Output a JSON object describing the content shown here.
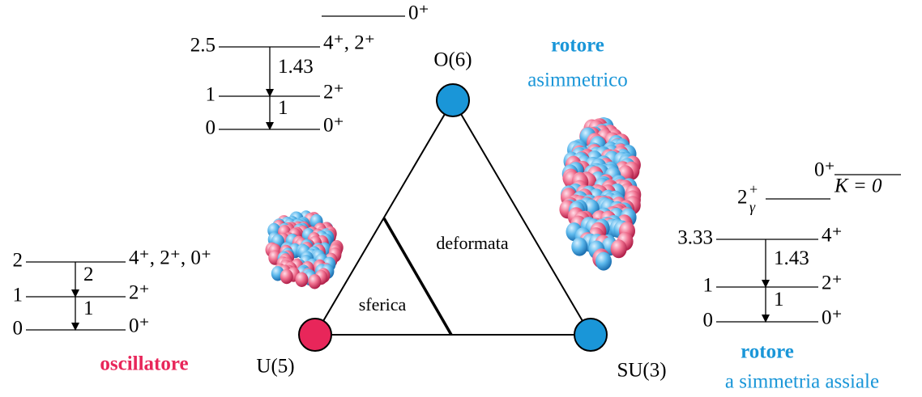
{
  "vertices": [
    {
      "label": "O(6)",
      "title": "rotore",
      "subtitle": "asimmetrico"
    },
    {
      "label": "U(5)",
      "title": "oscillatore"
    },
    {
      "label": "SU(3)",
      "title": "rotore",
      "subtitle": "a simmetria assiale"
    }
  ],
  "regions": [
    "deformata",
    "sferica"
  ],
  "schemes": [
    {
      "levels": [
        {
          "energy": 0,
          "spin": "0⁺"
        },
        {
          "energy": 1,
          "spin": "2⁺"
        },
        {
          "energy": 2.5,
          "spin": "4⁺, 2⁺"
        }
      ],
      "transitions": [
        1,
        1.43
      ],
      "extra": [
        {
          "spin": "0⁺"
        }
      ]
    },
    {
      "levels": [
        {
          "energy": 0,
          "spin": "0⁺"
        },
        {
          "energy": 1,
          "spin": "2⁺"
        },
        {
          "energy": 2,
          "spin": "4⁺, 2⁺, 0⁺"
        }
      ],
      "transitions": [
        1,
        2
      ]
    },
    {
      "levels": [
        {
          "energy": 0,
          "spin": "0⁺"
        },
        {
          "energy": 1,
          "spin": "2⁺"
        },
        {
          "energy": 3.33,
          "spin": "4⁺"
        }
      ],
      "transitions": [
        1,
        1.43
      ],
      "extra": [
        {
          "base": "2",
          "sup": "+",
          "sub": "γ"
        },
        {
          "spin": "0⁺",
          "band": "K = 0"
        }
      ]
    }
  ]
}
